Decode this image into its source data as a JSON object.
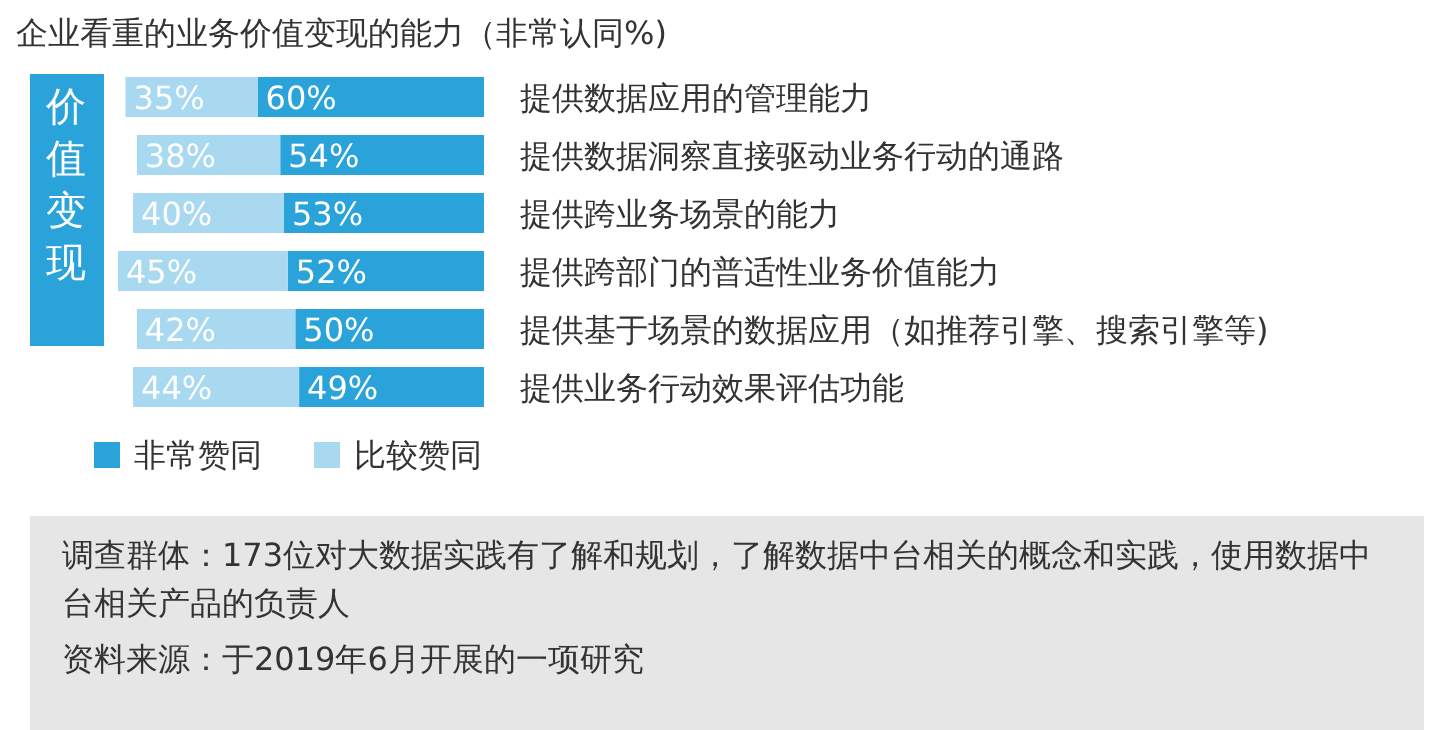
{
  "chart_data": {
    "type": "bar",
    "orientation": "horizontal",
    "stacked": true,
    "title": "企业看重的业务价值变现的能力（非常认同%)",
    "categories": [
      "提供数据应用的管理能力",
      "提供数据洞察直接驱动业务行动的通路",
      "提供跨业务场景的能力",
      "提供跨部门的普适性业务价值能力",
      "提供基于场景的数据应用（如推荐引擎、搜索引擎等)",
      "提供业务行动效果评估功能"
    ],
    "series": [
      {
        "name": "非常赞同",
        "color": "#29a3d9",
        "values": [
          60,
          54,
          53,
          52,
          50,
          49
        ],
        "value_labels": [
          "60%",
          "54%",
          "53%",
          "52%",
          "50%",
          "49%"
        ]
      },
      {
        "name": "比较赞同",
        "color": "#a8d9f0",
        "values": [
          35,
          38,
          40,
          45,
          42,
          44
        ],
        "value_labels": [
          "35%",
          "38%",
          "40%",
          "45%",
          "42%",
          "44%"
        ]
      }
    ],
    "tick_labels": "y",
    "legend": "bottom left",
    "annotations": [
      "价值变现",
      "调查群体：173位对大数据实践有了解和规划，了解数据中台相关的概念和实践，使用数据中台相关产品的负责人",
      "资料来源：于2019年6月开展的一项研究"
    ]
  }
}
